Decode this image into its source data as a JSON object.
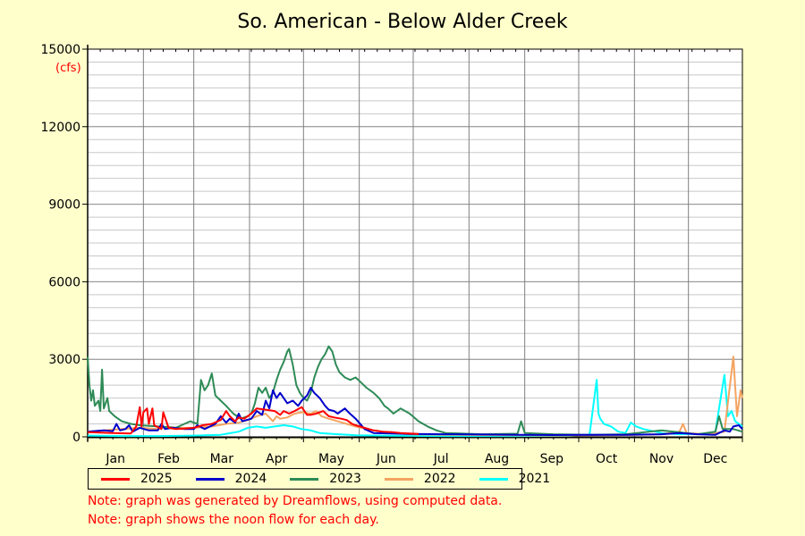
{
  "chart_data": {
    "type": "line",
    "title": "So. American - Below Alder Creek",
    "y_unit": "(cfs)",
    "ylim": [
      0,
      15000
    ],
    "y_ticks": [
      0,
      3000,
      6000,
      9000,
      12000,
      15000
    ],
    "x_range_days": [
      1,
      365
    ],
    "categories": [
      "Jan",
      "Feb",
      "Mar",
      "Apr",
      "May",
      "Jun",
      "Jul",
      "Aug",
      "Sep",
      "Oct",
      "Nov",
      "Dec"
    ],
    "grid": true,
    "legend_position": "bottom",
    "series": [
      {
        "name": "2025",
        "color": "#ff0000",
        "points": [
          [
            1,
            180
          ],
          [
            15,
            150
          ],
          [
            25,
            130
          ],
          [
            28,
            400
          ],
          [
            30,
            1150
          ],
          [
            31,
            400
          ],
          [
            32,
            950
          ],
          [
            34,
            1100
          ],
          [
            35,
            500
          ],
          [
            37,
            1100
          ],
          [
            38,
            450
          ],
          [
            42,
            300
          ],
          [
            43,
            950
          ],
          [
            46,
            350
          ],
          [
            50,
            300
          ],
          [
            55,
            320
          ],
          [
            60,
            350
          ],
          [
            65,
            450
          ],
          [
            70,
            500
          ],
          [
            75,
            650
          ],
          [
            78,
            1000
          ],
          [
            80,
            800
          ],
          [
            83,
            600
          ],
          [
            85,
            750
          ],
          [
            88,
            700
          ],
          [
            92,
            900
          ],
          [
            95,
            1100
          ],
          [
            100,
            1050
          ],
          [
            105,
            1000
          ],
          [
            108,
            850
          ],
          [
            110,
            1000
          ],
          [
            113,
            900
          ],
          [
            116,
            1000
          ],
          [
            120,
            1150
          ],
          [
            123,
            850
          ],
          [
            125,
            850
          ],
          [
            128,
            900
          ],
          [
            132,
            1000
          ],
          [
            135,
            800
          ],
          [
            138,
            750
          ],
          [
            142,
            700
          ],
          [
            145,
            650
          ],
          [
            148,
            500
          ],
          [
            150,
            450
          ],
          [
            155,
            350
          ],
          [
            160,
            250
          ],
          [
            165,
            200
          ],
          [
            170,
            180
          ],
          [
            175,
            150
          ],
          [
            180,
            130
          ],
          [
            185,
            110
          ]
        ]
      },
      {
        "name": "2024",
        "color": "#0000cc",
        "points": [
          [
            1,
            200
          ],
          [
            10,
            250
          ],
          [
            15,
            220
          ],
          [
            17,
            500
          ],
          [
            19,
            250
          ],
          [
            22,
            300
          ],
          [
            24,
            450
          ],
          [
            26,
            200
          ],
          [
            30,
            350
          ],
          [
            35,
            250
          ],
          [
            40,
            250
          ],
          [
            42,
            500
          ],
          [
            44,
            300
          ],
          [
            48,
            350
          ],
          [
            55,
            300
          ],
          [
            60,
            300
          ],
          [
            62,
            450
          ],
          [
            66,
            300
          ],
          [
            72,
            500
          ],
          [
            75,
            800
          ],
          [
            78,
            550
          ],
          [
            80,
            700
          ],
          [
            83,
            550
          ],
          [
            85,
            900
          ],
          [
            87,
            600
          ],
          [
            92,
            700
          ],
          [
            95,
            1000
          ],
          [
            98,
            850
          ],
          [
            100,
            1400
          ],
          [
            102,
            1100
          ],
          [
            104,
            1800
          ],
          [
            106,
            1500
          ],
          [
            108,
            1700
          ],
          [
            112,
            1300
          ],
          [
            115,
            1400
          ],
          [
            118,
            1200
          ],
          [
            120,
            1400
          ],
          [
            123,
            1600
          ],
          [
            125,
            1900
          ],
          [
            127,
            1700
          ],
          [
            130,
            1500
          ],
          [
            133,
            1200
          ],
          [
            135,
            1050
          ],
          [
            138,
            1000
          ],
          [
            140,
            900
          ],
          [
            144,
            1100
          ],
          [
            146,
            950
          ],
          [
            150,
            700
          ],
          [
            155,
            300
          ],
          [
            160,
            150
          ],
          [
            170,
            130
          ],
          [
            180,
            110
          ],
          [
            200,
            100
          ],
          [
            220,
            90
          ],
          [
            240,
            80
          ],
          [
            260,
            70
          ],
          [
            280,
            80
          ],
          [
            300,
            80
          ],
          [
            320,
            100
          ],
          [
            330,
            150
          ],
          [
            340,
            100
          ],
          [
            350,
            80
          ],
          [
            355,
            250
          ],
          [
            358,
            200
          ],
          [
            360,
            400
          ],
          [
            363,
            450
          ],
          [
            365,
            300
          ]
        ]
      },
      {
        "name": "2023",
        "color": "#2e8b57",
        "points": [
          [
            1,
            3100
          ],
          [
            2,
            2000
          ],
          [
            3,
            1400
          ],
          [
            4,
            1800
          ],
          [
            5,
            1200
          ],
          [
            7,
            1400
          ],
          [
            8,
            1000
          ],
          [
            9,
            2600
          ],
          [
            10,
            1100
          ],
          [
            12,
            1500
          ],
          [
            13,
            1000
          ],
          [
            16,
            800
          ],
          [
            20,
            600
          ],
          [
            25,
            500
          ],
          [
            30,
            450
          ],
          [
            40,
            400
          ],
          [
            50,
            350
          ],
          [
            58,
            600
          ],
          [
            62,
            500
          ],
          [
            64,
            2200
          ],
          [
            66,
            1800
          ],
          [
            68,
            2000
          ],
          [
            70,
            2450
          ],
          [
            72,
            1600
          ],
          [
            75,
            1400
          ],
          [
            78,
            1200
          ],
          [
            82,
            900
          ],
          [
            86,
            700
          ],
          [
            90,
            800
          ],
          [
            92,
            900
          ],
          [
            94,
            1300
          ],
          [
            96,
            1900
          ],
          [
            98,
            1700
          ],
          [
            100,
            1900
          ],
          [
            102,
            1500
          ],
          [
            104,
            1700
          ],
          [
            106,
            2200
          ],
          [
            108,
            2600
          ],
          [
            110,
            2900
          ],
          [
            112,
            3300
          ],
          [
            113,
            3400
          ],
          [
            115,
            2800
          ],
          [
            117,
            2000
          ],
          [
            119,
            1700
          ],
          [
            121,
            1500
          ],
          [
            123,
            1400
          ],
          [
            125,
            1700
          ],
          [
            127,
            2300
          ],
          [
            129,
            2700
          ],
          [
            131,
            3000
          ],
          [
            133,
            3200
          ],
          [
            135,
            3500
          ],
          [
            137,
            3300
          ],
          [
            139,
            2800
          ],
          [
            141,
            2500
          ],
          [
            144,
            2300
          ],
          [
            147,
            2200
          ],
          [
            150,
            2300
          ],
          [
            153,
            2100
          ],
          [
            156,
            1900
          ],
          [
            160,
            1700
          ],
          [
            163,
            1500
          ],
          [
            166,
            1200
          ],
          [
            168,
            1100
          ],
          [
            171,
            900
          ],
          [
            175,
            1100
          ],
          [
            180,
            900
          ],
          [
            185,
            600
          ],
          [
            190,
            400
          ],
          [
            195,
            250
          ],
          [
            200,
            150
          ],
          [
            220,
            100
          ],
          [
            240,
            120
          ],
          [
            242,
            600
          ],
          [
            244,
            150
          ],
          [
            260,
            100
          ],
          [
            280,
            80
          ],
          [
            300,
            100
          ],
          [
            320,
            250
          ],
          [
            340,
            100
          ],
          [
            350,
            200
          ],
          [
            352,
            800
          ],
          [
            354,
            300
          ],
          [
            360,
            300
          ],
          [
            365,
            200
          ]
        ]
      },
      {
        "name": "2022",
        "color": "#f4a460",
        "points": [
          [
            1,
            200
          ],
          [
            10,
            250
          ],
          [
            20,
            300
          ],
          [
            30,
            350
          ],
          [
            40,
            300
          ],
          [
            45,
            400
          ],
          [
            50,
            350
          ],
          [
            60,
            350
          ],
          [
            70,
            400
          ],
          [
            78,
            500
          ],
          [
            85,
            550
          ],
          [
            90,
            650
          ],
          [
            95,
            800
          ],
          [
            100,
            900
          ],
          [
            104,
            600
          ],
          [
            106,
            800
          ],
          [
            108,
            700
          ],
          [
            112,
            750
          ],
          [
            116,
            900
          ],
          [
            120,
            950
          ],
          [
            125,
            900
          ],
          [
            128,
            1000
          ],
          [
            131,
            800
          ],
          [
            135,
            700
          ],
          [
            140,
            600
          ],
          [
            145,
            500
          ],
          [
            150,
            400
          ],
          [
            160,
            250
          ],
          [
            170,
            150
          ],
          [
            180,
            100
          ],
          [
            200,
            80
          ],
          [
            220,
            70
          ],
          [
            240,
            60
          ],
          [
            260,
            50
          ],
          [
            280,
            60
          ],
          [
            300,
            70
          ],
          [
            320,
            100
          ],
          [
            330,
            200
          ],
          [
            332,
            500
          ],
          [
            334,
            150
          ],
          [
            345,
            100
          ],
          [
            355,
            200
          ],
          [
            360,
            3100
          ],
          [
            362,
            800
          ],
          [
            364,
            1800
          ],
          [
            365,
            1500
          ]
        ]
      },
      {
        "name": "2021",
        "color": "#00ffff",
        "points": [
          [
            1,
            50
          ],
          [
            20,
            30
          ],
          [
            40,
            30
          ],
          [
            60,
            50
          ],
          [
            75,
            80
          ],
          [
            85,
            200
          ],
          [
            90,
            350
          ],
          [
            95,
            400
          ],
          [
            100,
            350
          ],
          [
            105,
            400
          ],
          [
            110,
            450
          ],
          [
            115,
            400
          ],
          [
            120,
            300
          ],
          [
            125,
            250
          ],
          [
            130,
            150
          ],
          [
            140,
            100
          ],
          [
            150,
            60
          ],
          [
            170,
            40
          ],
          [
            200,
            30
          ],
          [
            240,
            30
          ],
          [
            270,
            40
          ],
          [
            280,
            80
          ],
          [
            284,
            2200
          ],
          [
            285,
            900
          ],
          [
            286,
            700
          ],
          [
            288,
            500
          ],
          [
            292,
            400
          ],
          [
            296,
            200
          ],
          [
            300,
            150
          ],
          [
            303,
            550
          ],
          [
            306,
            400
          ],
          [
            310,
            300
          ],
          [
            320,
            150
          ],
          [
            330,
            100
          ],
          [
            345,
            120
          ],
          [
            350,
            200
          ],
          [
            355,
            2400
          ],
          [
            357,
            800
          ],
          [
            359,
            1000
          ],
          [
            361,
            600
          ],
          [
            365,
            400
          ]
        ]
      }
    ]
  },
  "notes": [
    "Note: graph was generated by Dreamflows, using computed data.",
    "Note: graph shows the noon flow for each day."
  ]
}
